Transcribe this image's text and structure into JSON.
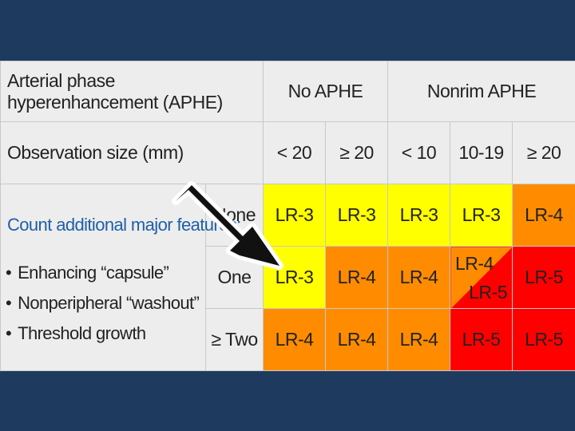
{
  "header": {
    "aphe_label": "Arterial phase hyperenhancement (APHE)",
    "no_aphe": "No APHE",
    "nonrim_aphe": "Nonrim APHE",
    "size_label": "Observation size (mm)",
    "sizes": [
      "< 20",
      "≥ 20",
      "< 10",
      "10-19",
      "≥ 20"
    ]
  },
  "side": {
    "title": "Count additional major features:",
    "features": [
      "Enhancing “capsule”",
      "Nonperipheral “washout”",
      "Threshold growth"
    ]
  },
  "rows": [
    {
      "label": "None",
      "cells": [
        "LR-3",
        "LR-3",
        "LR-3",
        "LR-3",
        "LR-4"
      ]
    },
    {
      "label": "One",
      "cells": [
        "LR-3",
        "LR-4",
        "LR-4",
        "LR-4",
        "LR-5",
        "LR-5"
      ]
    },
    {
      "label": "≥ Two",
      "cells": [
        "LR-4",
        "LR-4",
        "LR-4",
        "LR-5",
        "LR-5"
      ]
    }
  ],
  "colors": {
    "background": "#1e3a5f",
    "header": "#ededed",
    "yellow": "#ffff00",
    "orange": "#ff8c00",
    "red": "#ff0000",
    "feature_title": "#1f5fa8",
    "arrow": "#111111"
  },
  "icons": {
    "pointer": "arrow-icon"
  }
}
